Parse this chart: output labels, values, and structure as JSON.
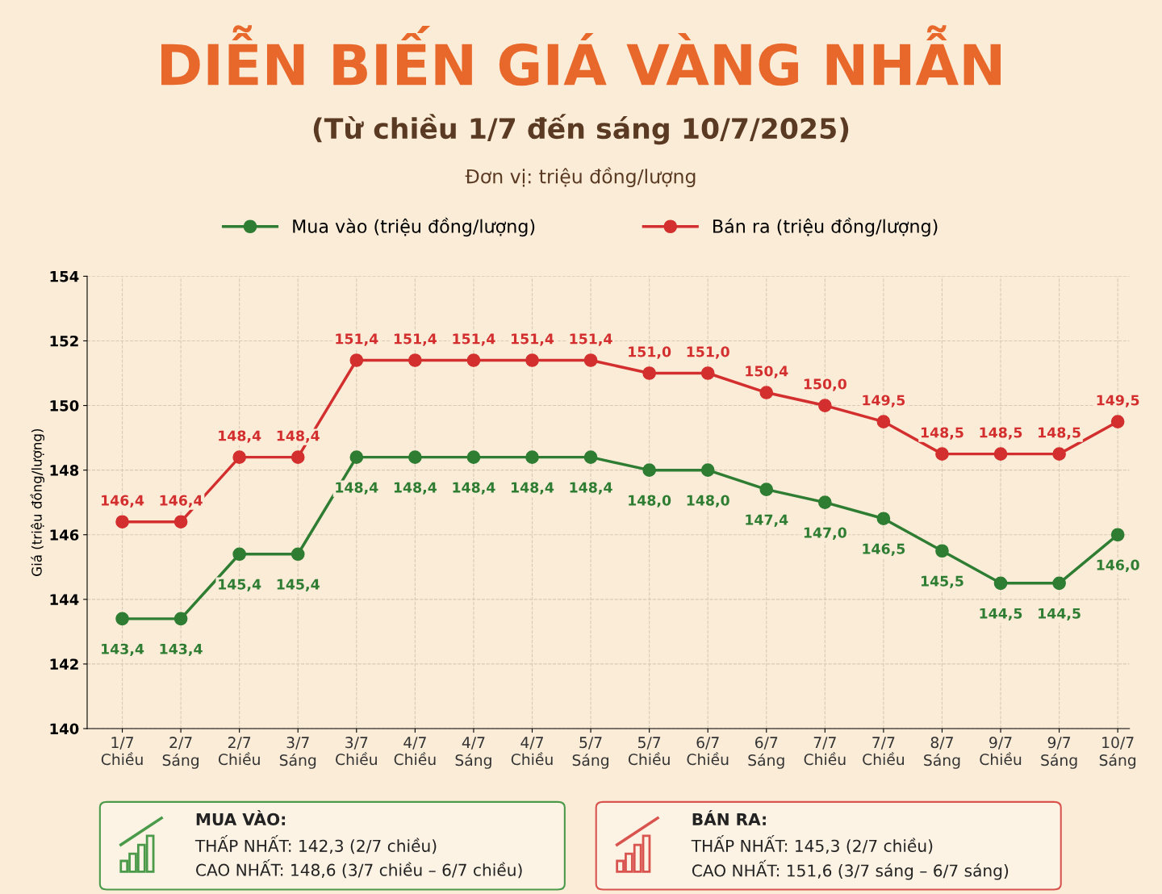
{
  "chart_data": {
    "type": "line",
    "title": "DIỄN BIẾN GIÁ VÀNG NHẪN",
    "subtitle": "(Từ chiều 1/7 đến sáng 10/7/2025)",
    "ylabel": "Giá (triệu đồng/lượng)",
    "categories": [
      "1/7\nChiều",
      "2/7\nSáng",
      "2/7\nChiều",
      "3/7\nSáng",
      "3/7\nChiều",
      "4/7\nChiều",
      "4/7\nSáng",
      "4/7\nChiều",
      "5/7\nSáng",
      "5/7\nChiều",
      "6/7\nChiều",
      "6/7\nSáng",
      "7/7\nChiều",
      "7/7\nChiều",
      "8/7\nSáng",
      "9/7\nChiều",
      "9/7\nSáng",
      "10/7\nSáng"
    ],
    "series": [
      {
        "name": "Mua vào (triệu đồng/lượng)",
        "color": "#2e7d32",
        "values": [
          143.4,
          143.4,
          145.4,
          145.4,
          148.4,
          148.4,
          148.4,
          148.4,
          148.4,
          148.0,
          148.0,
          147.4,
          147.0,
          146.5,
          145.5,
          144.5,
          144.5,
          146.0
        ],
        "value_labels": [
          "143,4",
          "143,4",
          "145,4",
          "145,4",
          "148,4",
          "148,4",
          "148,4",
          "148,4",
          "148,4",
          "148,0",
          "148,0",
          "147,4",
          "147,0",
          "146,5",
          "145,5",
          "144,5",
          "144,5",
          "146,0"
        ]
      },
      {
        "name": "Bán ra (triệu đồng/lượng)",
        "color": "#d32f2f",
        "values": [
          146.4,
          146.4,
          148.4,
          148.4,
          151.4,
          151.4,
          151.4,
          151.4,
          151.4,
          151.0,
          151.0,
          150.4,
          150.0,
          149.5,
          148.5,
          148.5,
          148.5,
          149.5
        ],
        "value_labels": [
          "146,4",
          "146,4",
          "148,4",
          "148,4",
          "151,4",
          "151,4",
          "151,4",
          "151,4",
          "151,4",
          "151,0",
          "151,0",
          "150,4",
          "150,0",
          "149,5",
          "148,5",
          "148,5",
          "148,5",
          "149,5"
        ]
      }
    ],
    "ylim": [
      140,
      154
    ],
    "yticks": [
      140,
      142,
      144,
      146,
      148,
      150,
      152,
      154
    ],
    "grid": true,
    "legend": "top",
    "marker": "circle",
    "line_style": "solid",
    "annotations": [
      "Đơn vị: triệu đồng/lượng",
      "MUA VÀO:",
      "THẤP NHẤT: 142,3 (2/7 chiều)",
      "CAO NHẤT: 148,6 (3/7 chiều – 6/7 chiều)",
      "BÁN RA:",
      "THẤP NHẤT: 145,3 (2/7 chiều)",
      "CAO NHẤT: 151,6 (3/7 sáng – 6/7 sáng)"
    ]
  }
}
